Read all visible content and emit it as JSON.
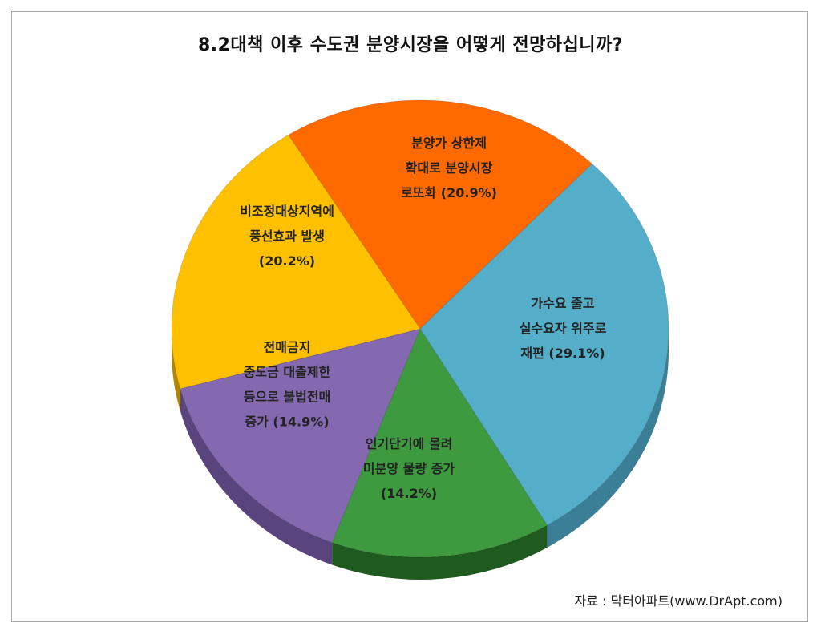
{
  "chart_data": {
    "type": "pie",
    "title": "8.2대책 이후 수도권 분양시장을 어떻게 전망하십니까?",
    "slices": [
      {
        "label_lines": [
          "분양가 상한제",
          "확대로 분양시장",
          "로또화 (20.9%)"
        ],
        "value": 20.9,
        "color": "#ff6a00",
        "side": "#b84a00"
      },
      {
        "label_lines": [
          "가수요 줄고",
          "실수요자 위주로",
          "재편 (29.1%)"
        ],
        "value": 29.1,
        "color": "#55aec9",
        "side": "#3a7f96"
      },
      {
        "label_lines": [
          "인기단기에 몰려",
          "미분양 물량 증가",
          "(14.2%)"
        ],
        "value": 14.2,
        "color": "#3e9a3e",
        "side": "#1f5a1f"
      },
      {
        "label_lines": [
          "전매금지",
          "중도금 대출제한",
          "등으로 불법전매",
          "증가 (14.9%)"
        ],
        "value": 14.9,
        "color": "#8468b0",
        "side": "#5a447e"
      },
      {
        "label_lines": [
          "비조정대상지역에",
          "풍선효과 발생",
          "(20.2%)"
        ],
        "value": 20.2,
        "color": "#ffc000",
        "side": "#b38600"
      }
    ]
  },
  "source": "자료 : 닥터아파트(www.DrApt.com)"
}
